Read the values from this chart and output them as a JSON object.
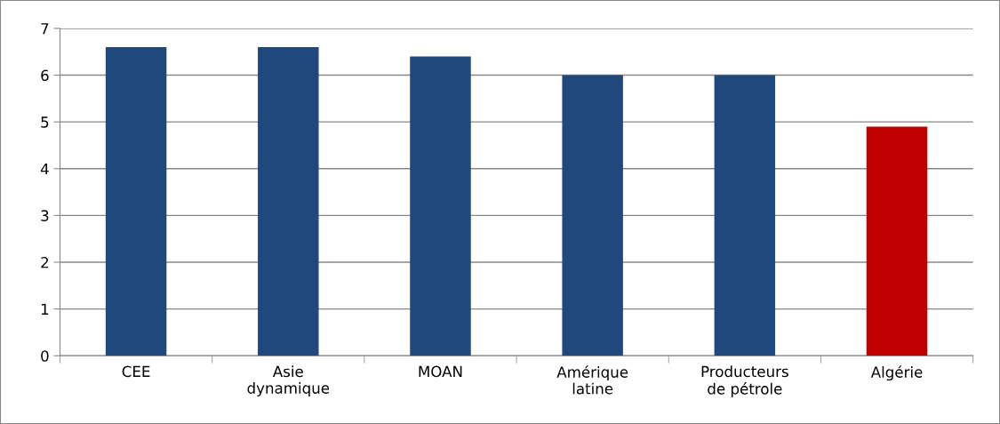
{
  "chart_data": {
    "type": "bar",
    "categories": [
      "CEE",
      "Asie\ndynamique",
      "MOAN",
      "Amérique\nlatine",
      "Producteurs\nde pétrole",
      "Algérie"
    ],
    "values": [
      6.6,
      6.6,
      6.4,
      6.0,
      6.0,
      4.9
    ],
    "colors": [
      "#1f497d",
      "#1f497d",
      "#1f497d",
      "#1f497d",
      "#1f497d",
      "#c00000"
    ],
    "ylim": [
      0,
      7
    ],
    "yticks": [
      0,
      1,
      2,
      3,
      4,
      5,
      6,
      7
    ],
    "grid": "y",
    "legend": false
  }
}
